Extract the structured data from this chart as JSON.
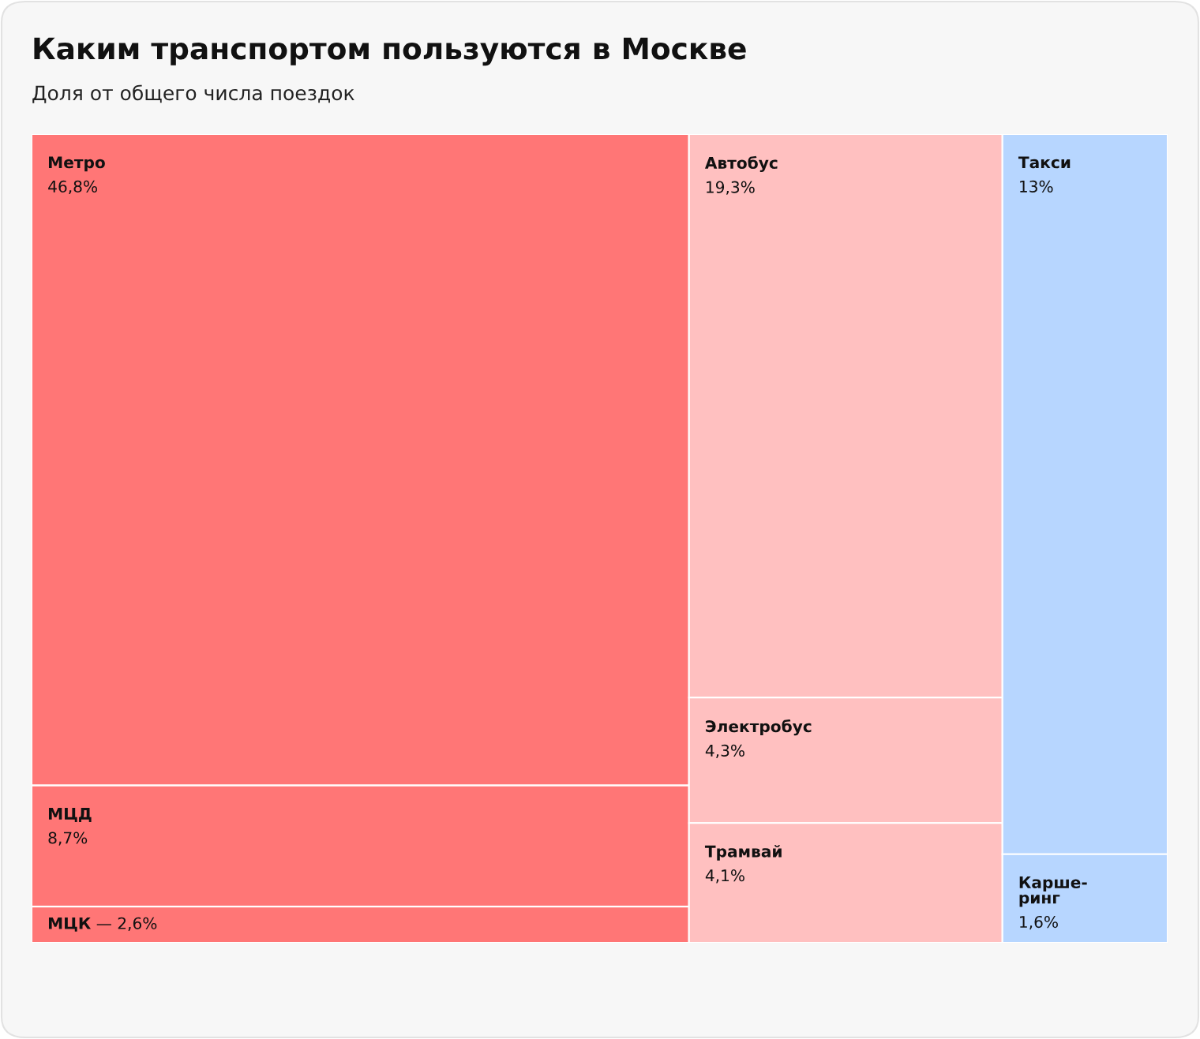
{
  "chart_data": {
    "type": "other",
    "title": "Каким транспортом пользуются в Москве",
    "subtitle": "Доля от общего числа поездок",
    "categories": [
      "Метро",
      "МЦД",
      "МЦК",
      "Автобус",
      "Электробус",
      "Трамвай",
      "Такси",
      "Карше-\nринг"
    ],
    "values": [
      46.8,
      8.7,
      2.6,
      19.3,
      4.3,
      4.1,
      13,
      1.6
    ],
    "value_labels": [
      "46,8%",
      "8,7%",
      "— 2,6%",
      "19,3%",
      "4,3%",
      "4,1%",
      "13%",
      "1,6%"
    ],
    "colors": [
      "#ff7676",
      "#ff7676",
      "#ff7676",
      "#ffc0c0",
      "#ffc0c0",
      "#ffc0c0",
      "#b7d6ff",
      "#b7d6ff"
    ]
  }
}
